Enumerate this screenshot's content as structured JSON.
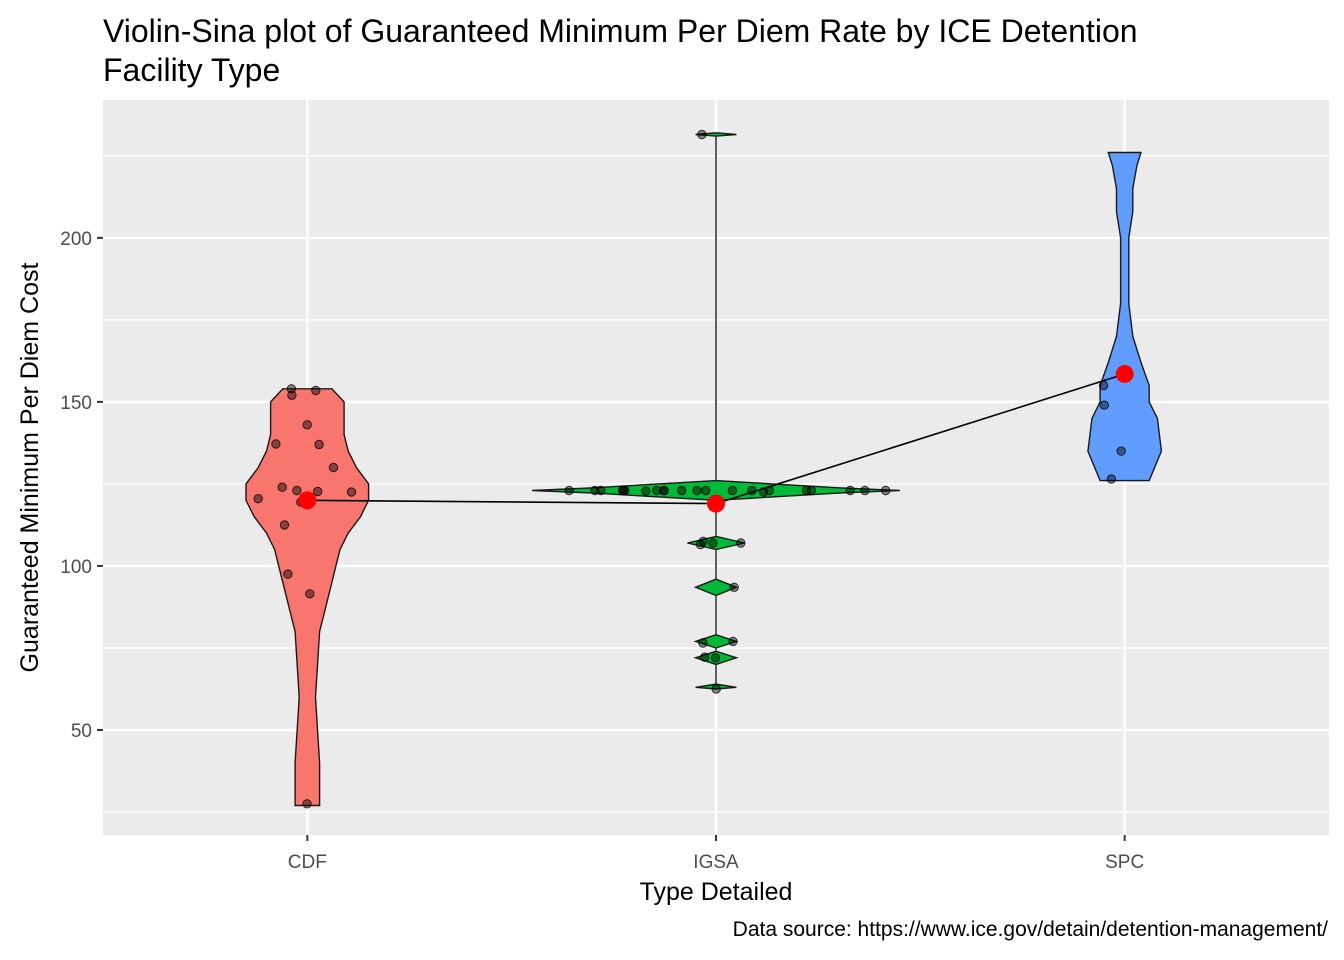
{
  "chart_data": {
    "type": "violin-sina",
    "title_lines": [
      "Violin-Sina plot of Guaranteed Minimum Per Diem Rate by ICE Detention",
      "Facility Type"
    ],
    "xlabel": "Type Detailed",
    "ylabel": "Guaranteed Minimum Per Diem Cost",
    "caption": "Data source: https://www.ice.gov/detain/detention-management/",
    "categories": [
      "CDF",
      "IGSA",
      "SPC"
    ],
    "ylim": [
      18,
      242
    ],
    "yticks": [
      50,
      100,
      150,
      200
    ],
    "grid": true,
    "background": "#EBEBEB",
    "colors": {
      "CDF": "#F8766D",
      "IGSA": "#00BA38",
      "SPC": "#619CFF",
      "mean": "#FF0000"
    },
    "means": [
      {
        "category": "CDF",
        "value": 120
      },
      {
        "category": "IGSA",
        "value": 119
      },
      {
        "category": "SPC",
        "value": 158.5
      }
    ],
    "violins": [
      {
        "category": "CDF",
        "profile": [
          [
            27,
            0.03
          ],
          [
            40,
            0.03
          ],
          [
            60,
            0.02
          ],
          [
            80,
            0.03
          ],
          [
            90,
            0.05
          ],
          [
            95,
            0.06
          ],
          [
            100,
            0.07
          ],
          [
            105,
            0.08
          ],
          [
            110,
            0.1
          ],
          [
            115,
            0.13
          ],
          [
            120,
            0.15
          ],
          [
            125,
            0.15
          ],
          [
            130,
            0.12
          ],
          [
            135,
            0.1
          ],
          [
            140,
            0.09
          ],
          [
            145,
            0.09
          ],
          [
            150,
            0.09
          ],
          [
            154,
            0.06
          ]
        ]
      },
      {
        "category": "IGSA",
        "profile": [
          [
            62.5,
            0.0
          ],
          [
            63,
            0.05
          ],
          [
            64,
            0.0
          ],
          [
            70,
            0.0
          ],
          [
            72,
            0.05
          ],
          [
            74,
            0.0
          ],
          [
            75,
            0.0
          ],
          [
            77,
            0.05
          ],
          [
            79,
            0.0
          ],
          [
            91,
            0.0
          ],
          [
            93.5,
            0.05
          ],
          [
            96,
            0.0
          ],
          [
            105,
            0.0
          ],
          [
            107,
            0.07
          ],
          [
            109,
            0.0
          ],
          [
            120,
            0.0
          ],
          [
            122.2,
            0.3
          ],
          [
            123,
            0.45
          ],
          [
            123.8,
            0.3
          ],
          [
            126,
            0.0
          ],
          [
            231,
            0.0
          ],
          [
            231.5,
            0.05
          ],
          [
            232,
            0.0
          ]
        ]
      },
      {
        "category": "SPC",
        "profile": [
          [
            126,
            0.06
          ],
          [
            135,
            0.09
          ],
          [
            145,
            0.08
          ],
          [
            150,
            0.06
          ],
          [
            155,
            0.06
          ],
          [
            162,
            0.04
          ],
          [
            170,
            0.02
          ],
          [
            180,
            0.01
          ],
          [
            190,
            0.01
          ],
          [
            200,
            0.01
          ],
          [
            208,
            0.02
          ],
          [
            215,
            0.02
          ],
          [
            222,
            0.03
          ],
          [
            226,
            0.04
          ]
        ]
      }
    ],
    "points": [
      {
        "category": "CDF",
        "values": [
          27.5,
          91.5,
          97.5,
          112.5,
          119.5,
          120,
          120.5,
          122.5,
          122.7,
          123,
          124,
          130,
          137,
          137.2,
          143,
          152,
          153.5,
          154
        ]
      },
      {
        "category": "IGSA",
        "values": [
          62.5,
          72,
          72.2,
          76.5,
          77,
          93.5,
          106.5,
          107,
          107,
          107.5,
          119,
          120,
          122.5,
          122.8,
          123,
          123,
          123,
          123,
          123,
          123,
          123,
          123,
          123,
          123,
          123,
          123,
          123,
          123,
          123,
          123,
          123,
          123,
          123,
          123,
          231.5
        ]
      },
      {
        "category": "SPC",
        "values": [
          126.5,
          135,
          149,
          155,
          158
        ]
      }
    ]
  }
}
